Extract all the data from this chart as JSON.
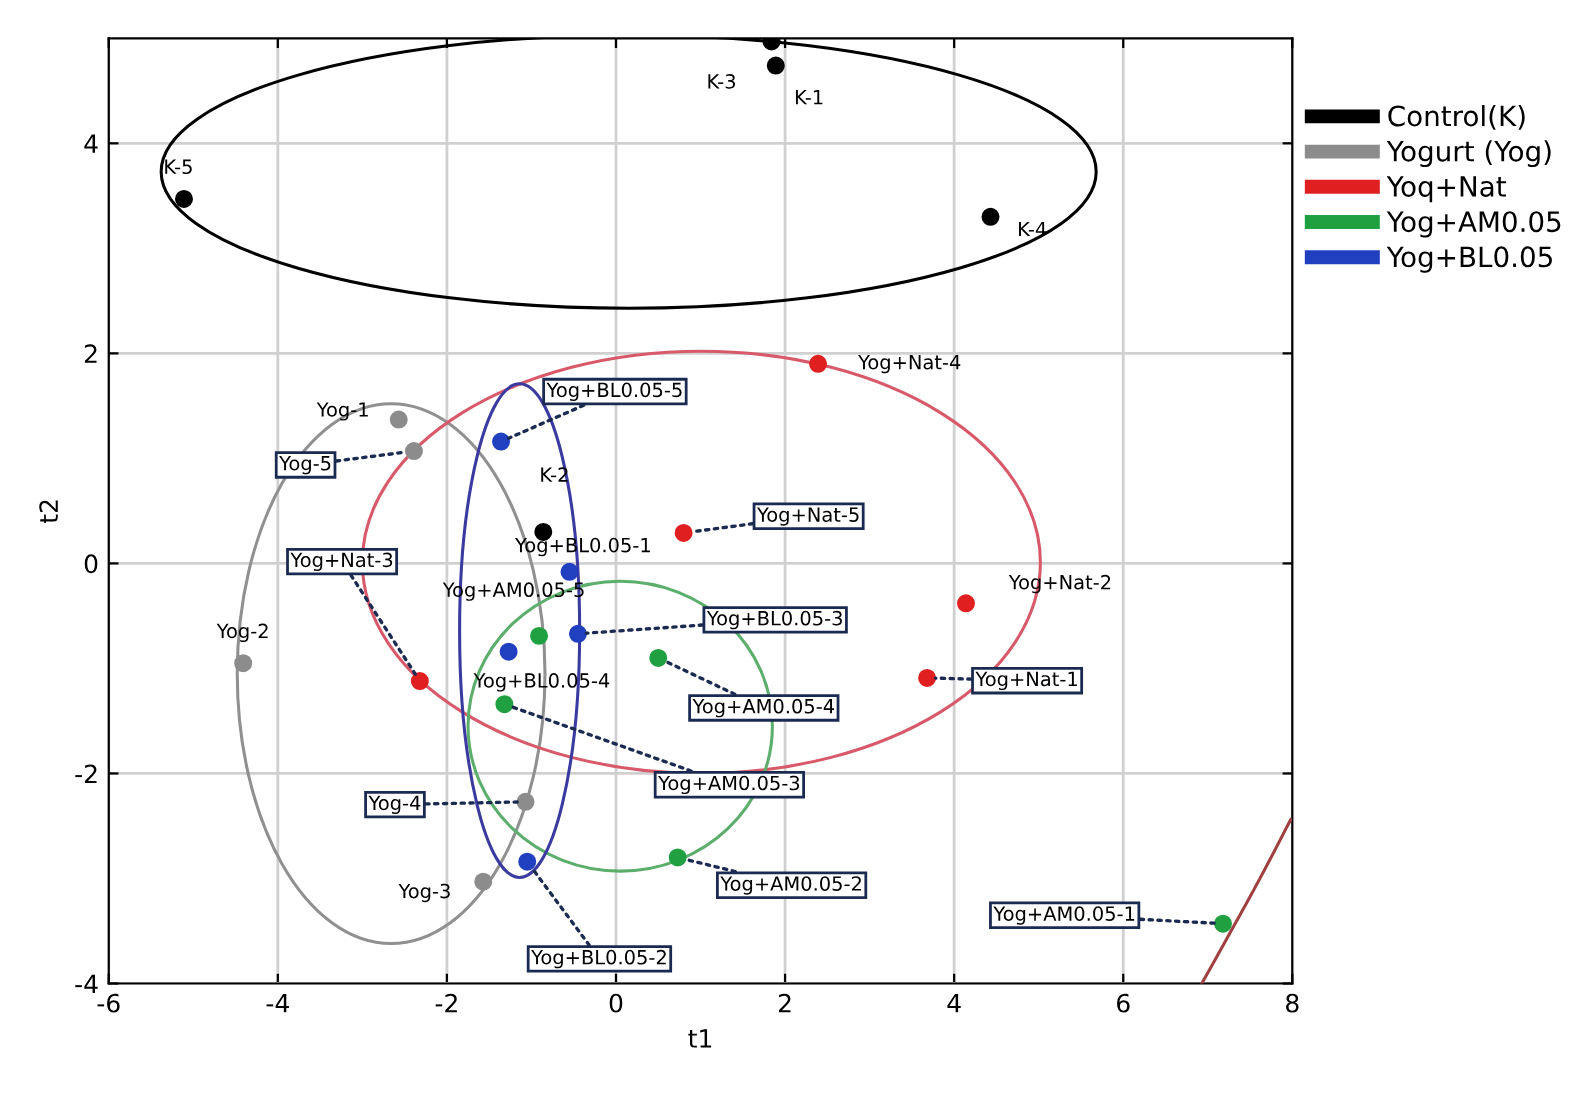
{
  "chart_data": {
    "type": "scatter",
    "xlabel": "t1",
    "ylabel": "t2",
    "xlim": [
      -6,
      8
    ],
    "ylim": [
      -4,
      5
    ],
    "xticks": [
      -6,
      -4,
      -2,
      0,
      2,
      4,
      6,
      8
    ],
    "yticks": [
      -4,
      -2,
      0,
      2,
      4
    ],
    "grid": true,
    "legend": "right",
    "marker": "circle",
    "series": [
      {
        "name": "Control(K)",
        "color": "#000000",
        "x": [
          1.89,
          -0.86,
          1.84,
          4.43,
          -5.11
        ],
        "values": [
          4.74,
          0.3,
          4.97,
          3.3,
          3.47
        ]
      },
      {
        "name": "Yogurt (Yog)",
        "color": "#8c8c8c",
        "x": [
          -2.57,
          -4.41,
          -1.57,
          -1.07,
          -2.39
        ],
        "values": [
          1.37,
          -0.95,
          -3.03,
          -2.27,
          1.07
        ]
      },
      {
        "name": "Yoq+Nat",
        "color": "#e02020",
        "x": [
          3.68,
          4.14,
          -2.32,
          2.39,
          0.8
        ],
        "values": [
          -1.09,
          -0.38,
          -1.12,
          1.9,
          0.29
        ]
      },
      {
        "name": "Yog+AM0.05",
        "color": "#20a040",
        "x": [
          7.18,
          0.73,
          -1.32,
          0.5,
          -0.91
        ],
        "values": [
          -3.43,
          -2.8,
          -1.34,
          -0.9,
          -0.69
        ]
      },
      {
        "name": "Yog+BL0.05",
        "color": "#2040c0",
        "x": [
          -0.55,
          -1.05,
          -0.45,
          -1.27,
          -1.36
        ],
        "values": [
          -0.08,
          -2.84,
          -0.67,
          -0.84,
          1.16
        ]
      },
      {
        "type": "line",
        "marker": "none",
        "color": "#a04040",
        "x": [
          6.93,
          7.57,
          7.98
        ],
        "values": [
          -4.0,
          -3.07,
          -2.44
        ]
      }
    ],
    "annotations": [
      {
        "text": "K-3",
        "x": 1.84,
        "y": 4.97
      },
      {
        "text": "K-1",
        "x": 1.89,
        "y": 4.74
      },
      {
        "text": "K-5",
        "x": -5.11,
        "y": 3.47
      },
      {
        "text": "K-4",
        "x": 4.43,
        "y": 3.3
      },
      {
        "text": "K-2",
        "x": -0.86,
        "y": 0.3
      },
      {
        "text": "Yog-1",
        "x": -2.57,
        "y": 1.37
      },
      {
        "text": "Yog-5",
        "x": -2.39,
        "y": 1.07
      },
      {
        "text": "Yog-2",
        "x": -4.41,
        "y": -0.95
      },
      {
        "text": "Yog-4",
        "x": -1.07,
        "y": -2.27
      },
      {
        "text": "Yog-3",
        "x": -1.57,
        "y": -3.03
      },
      {
        "text": "Yog+Nat-4",
        "x": 2.39,
        "y": 1.9
      },
      {
        "text": "Yog+Nat-5",
        "x": 0.8,
        "y": 0.29
      },
      {
        "text": "Yog+Nat-2",
        "x": 4.14,
        "y": -0.38
      },
      {
        "text": "Yog+Nat-1",
        "x": 3.68,
        "y": -1.09
      },
      {
        "text": "Yog+Nat-3",
        "x": -2.32,
        "y": -1.12
      },
      {
        "text": "Yog+BL0.05-5",
        "x": -1.36,
        "y": 1.16
      },
      {
        "text": "Yog+BL0.05-1",
        "x": -0.55,
        "y": -0.08
      },
      {
        "text": "Yog+BL0.05-3",
        "x": -0.45,
        "y": -0.67
      },
      {
        "text": "Yog+BL0.05-4",
        "x": -1.27,
        "y": -0.84
      },
      {
        "text": "Yog+BL0.05-2",
        "x": -1.05,
        "y": -2.84
      },
      {
        "text": "Yog+AM0.05-5",
        "x": -0.91,
        "y": -0.69
      },
      {
        "text": "Yog+AM0.05-4",
        "x": 0.5,
        "y": -0.9
      },
      {
        "text": "Yog+AM0.05-3",
        "x": -1.32,
        "y": -1.34
      },
      {
        "text": "Yog+AM0.05-2",
        "x": 0.73,
        "y": -2.8
      },
      {
        "text": "Yog+AM0.05-1",
        "x": 7.18,
        "y": -3.43
      }
    ]
  }
}
